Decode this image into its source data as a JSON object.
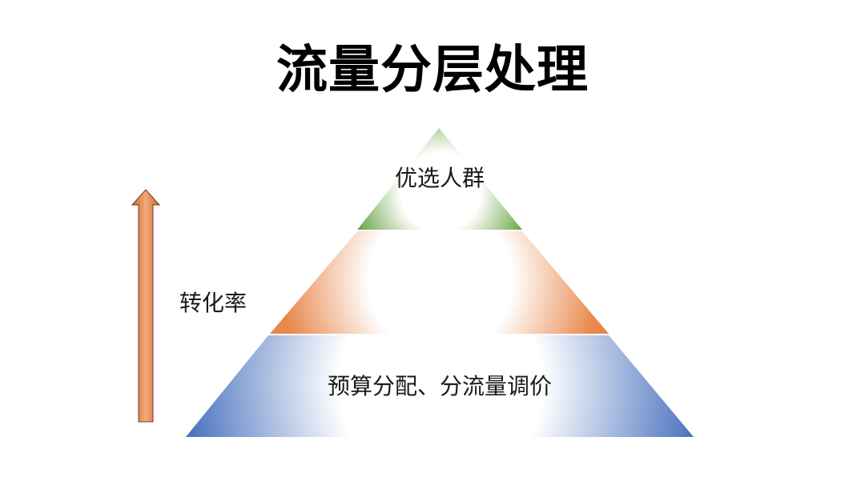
{
  "title": "流量分层处理",
  "pyramid": {
    "layers": [
      {
        "label": "优选人群",
        "color": "#6fa84f"
      },
      {
        "label": "",
        "color": "#e8874a"
      },
      {
        "label": "预算分配、分流量调价",
        "color": "#4a73bf"
      }
    ]
  },
  "axis": {
    "label": "转化率",
    "color": "#c8672b"
  }
}
